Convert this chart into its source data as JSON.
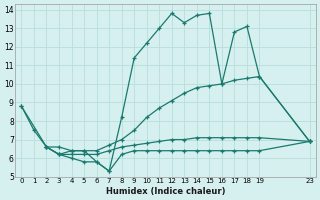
{
  "xlabel": "Humidex (Indice chaleur)",
  "bg_color": "#d6efef",
  "grid_color": "#b8dede",
  "line_color": "#1a7a6e",
  "xlim": [
    -0.5,
    23.5
  ],
  "ylim": [
    5,
    14.3
  ],
  "xticks": [
    0,
    1,
    2,
    3,
    4,
    5,
    6,
    7,
    8,
    9,
    10,
    11,
    12,
    13,
    14,
    15,
    16,
    17,
    18,
    19,
    23
  ],
  "yticks": [
    5,
    6,
    7,
    8,
    9,
    10,
    11,
    12,
    13,
    14
  ],
  "series": [
    {
      "x": [
        0,
        1,
        2,
        3,
        4,
        5,
        6,
        7,
        8,
        9,
        10,
        11,
        12,
        13,
        14,
        15,
        16,
        17,
        18,
        19,
        23
      ],
      "y": [
        8.8,
        7.5,
        6.6,
        6.6,
        6.4,
        6.4,
        5.8,
        5.3,
        8.2,
        11.4,
        12.2,
        13.0,
        13.8,
        13.3,
        13.7,
        13.8,
        10.0,
        12.8,
        13.1,
        10.4,
        6.9
      ]
    },
    {
      "x": [
        0,
        2,
        3,
        4,
        5,
        6,
        7,
        8,
        9,
        10,
        11,
        12,
        13,
        14,
        15,
        16,
        17,
        18,
        19,
        23
      ],
      "y": [
        8.8,
        6.6,
        6.2,
        6.4,
        6.4,
        6.4,
        6.7,
        7.0,
        7.5,
        8.2,
        8.7,
        9.1,
        9.5,
        9.8,
        9.9,
        10.0,
        10.2,
        10.3,
        10.4,
        6.9
      ]
    },
    {
      "x": [
        2,
        3,
        4,
        5,
        6,
        7,
        8,
        9,
        10,
        11,
        12,
        13,
        14,
        15,
        16,
        17,
        18,
        19,
        23
      ],
      "y": [
        6.6,
        6.2,
        6.2,
        6.2,
        6.2,
        6.4,
        6.6,
        6.7,
        6.8,
        6.9,
        7.0,
        7.0,
        7.1,
        7.1,
        7.1,
        7.1,
        7.1,
        7.1,
        6.9
      ]
    },
    {
      "x": [
        2,
        3,
        4,
        5,
        6,
        7,
        8,
        9,
        10,
        11,
        12,
        13,
        14,
        15,
        16,
        17,
        18,
        19,
        23
      ],
      "y": [
        6.6,
        6.2,
        6.0,
        5.8,
        5.8,
        5.3,
        6.2,
        6.4,
        6.4,
        6.4,
        6.4,
        6.4,
        6.4,
        6.4,
        6.4,
        6.4,
        6.4,
        6.4,
        6.9
      ]
    }
  ]
}
